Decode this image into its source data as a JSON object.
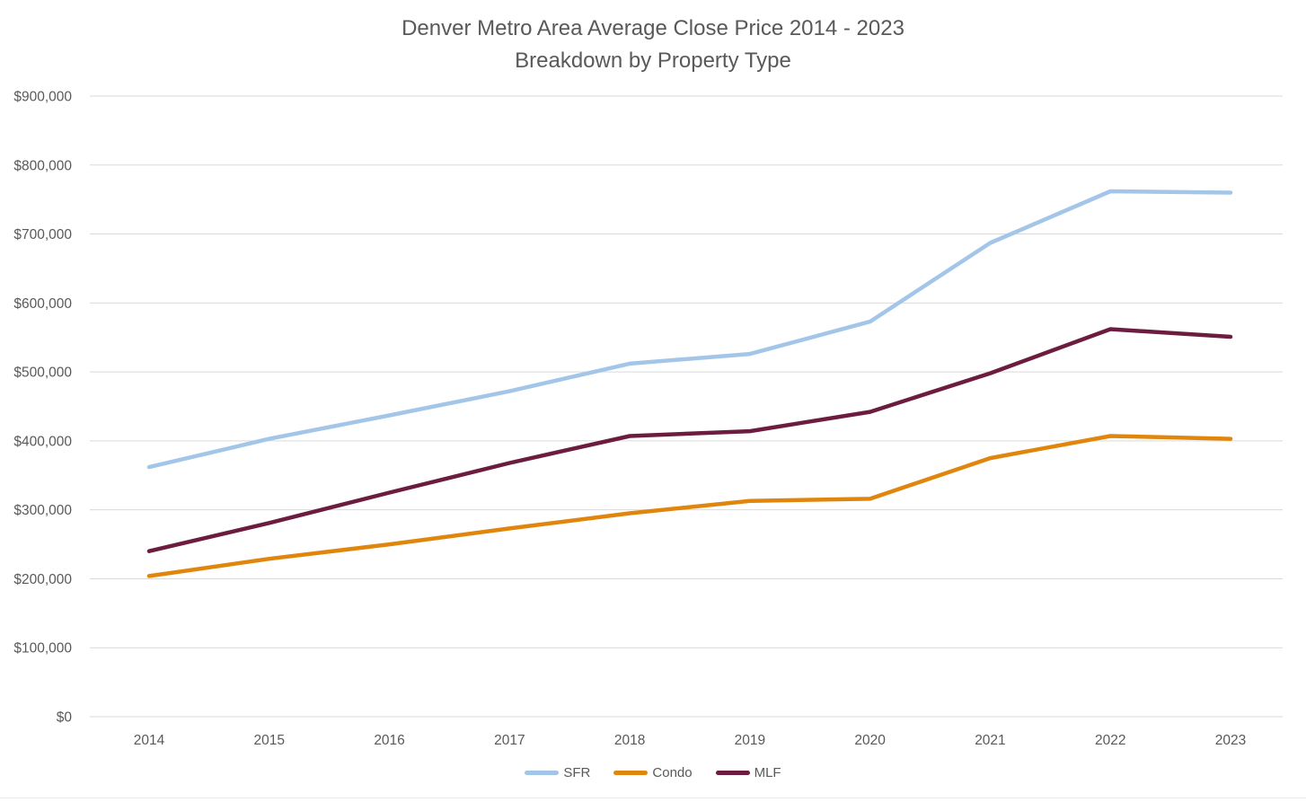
{
  "title": {
    "line1": "Denver Metro Area Average Close Price 2014 - 2023",
    "line2": "Breakdown by Property Type"
  },
  "colors": {
    "text": "#595959",
    "gridline": "#d9d9d9",
    "background": "#ffffff"
  },
  "chart_data": {
    "type": "line",
    "title": "Denver Metro Area Average Close Price 2014 - 2023",
    "subtitle": "Breakdown by Property Type",
    "x_labels": [
      "2014",
      "2015",
      "2016",
      "2017",
      "2018",
      "2019",
      "2020",
      "2021",
      "2022",
      "2023"
    ],
    "y_ticks": [
      "$900,000",
      "$800,000",
      "$700,000",
      "$600,000",
      "$500,000",
      "$400,000",
      "$300,000",
      "$200,000",
      "$100,000",
      "$0"
    ],
    "ylim": [
      0,
      900000
    ],
    "grid": "horizontal",
    "legend_position": "bottom",
    "series": [
      {
        "name": "SFR",
        "color": "#a2c5e8",
        "values": [
          362000,
          403000,
          437000,
          472000,
          512000,
          526000,
          573000,
          687000,
          762000,
          760000
        ]
      },
      {
        "name": "Condo",
        "color": "#e0860d",
        "values": [
          204000,
          229000,
          250000,
          273000,
          295000,
          313000,
          316000,
          375000,
          407000,
          403000
        ]
      },
      {
        "name": "MLF",
        "color": "#6b1c3f",
        "values": [
          240000,
          281000,
          325000,
          368000,
          407000,
          414000,
          442000,
          498000,
          562000,
          551000
        ]
      }
    ]
  }
}
